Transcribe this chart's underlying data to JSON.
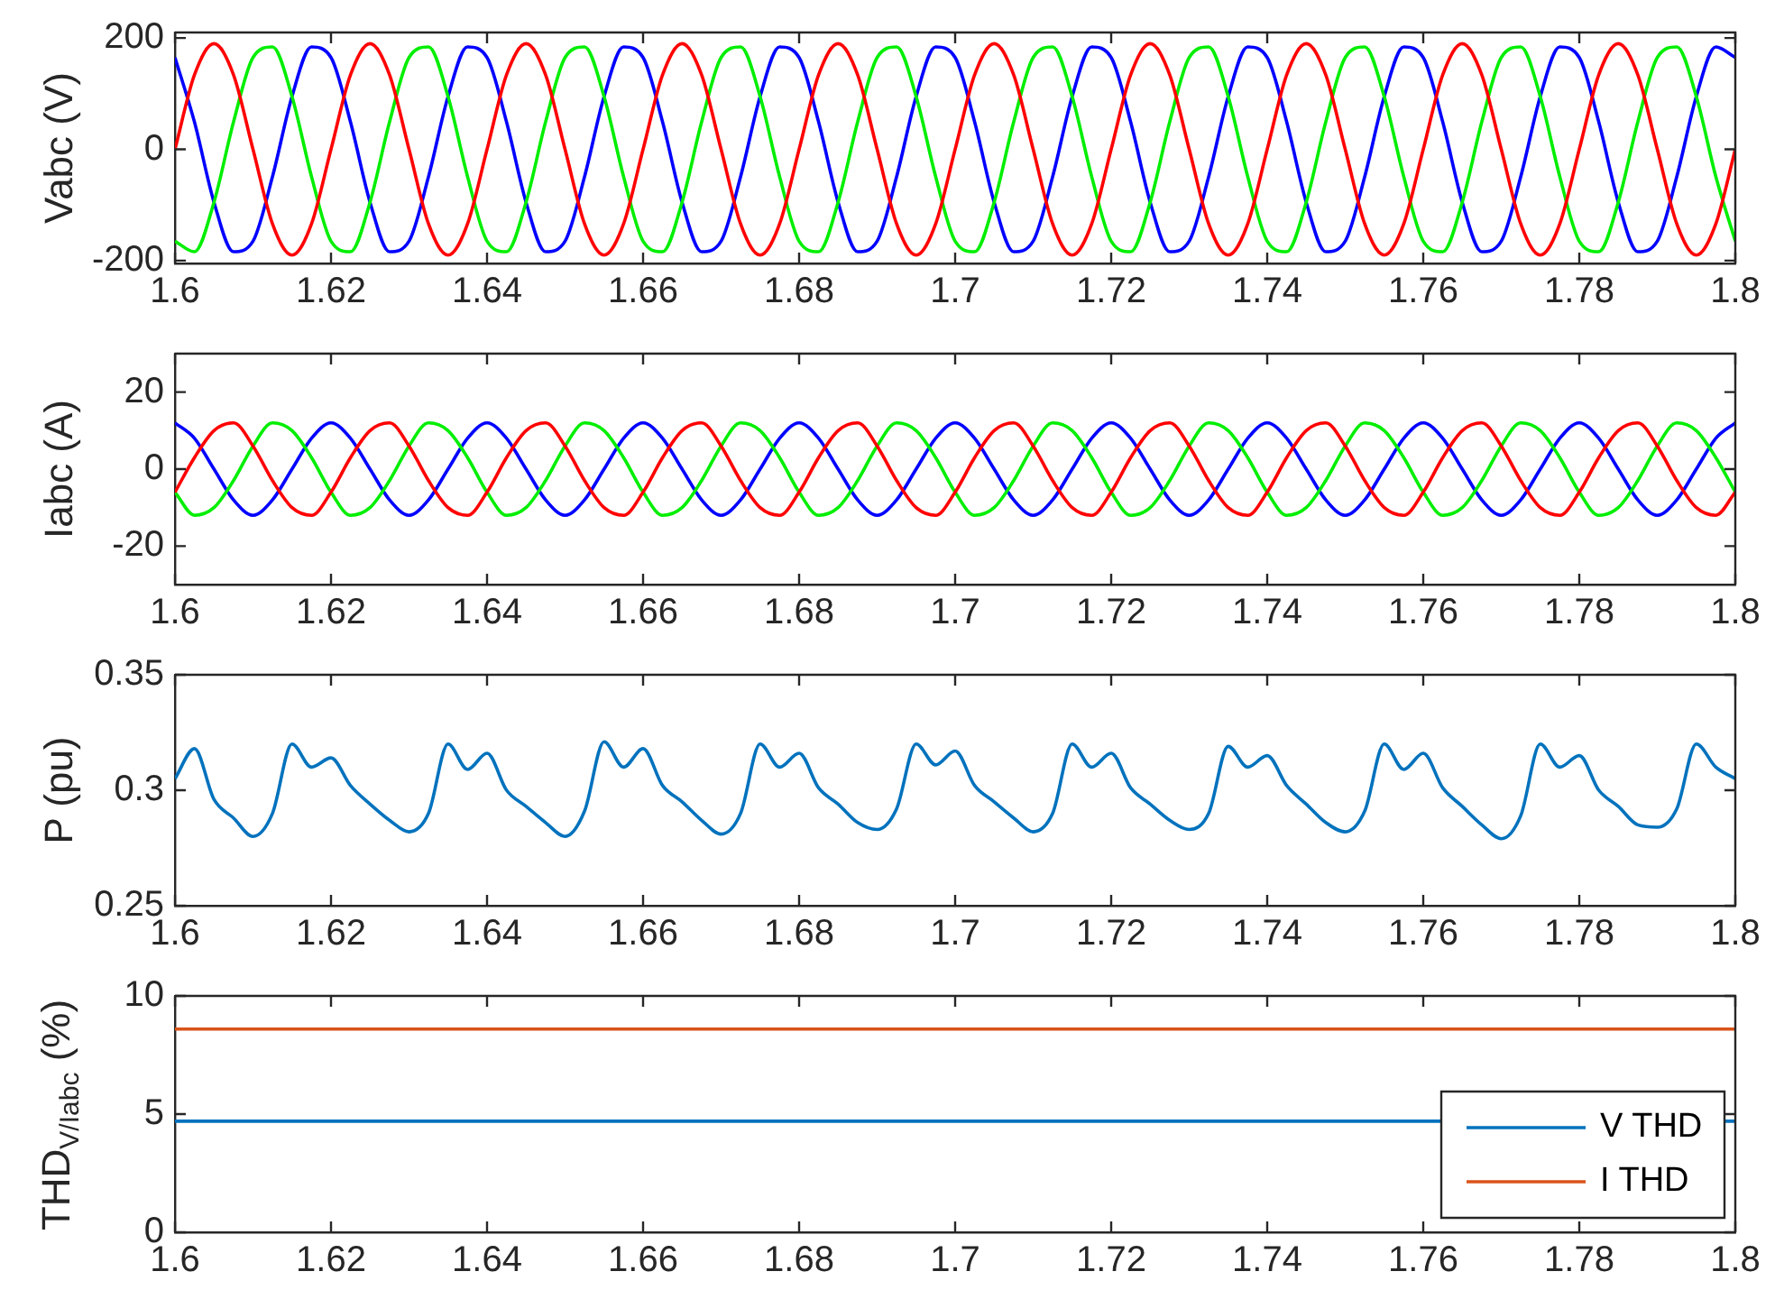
{
  "chart_data": [
    {
      "type": "line",
      "ylabel": "Vabc (V)",
      "xlim": [
        1.6,
        1.8
      ],
      "xticks": [
        1.6,
        1.62,
        1.64,
        1.66,
        1.68,
        1.7,
        1.72,
        1.74,
        1.76,
        1.78,
        1.8
      ],
      "ylim": [
        -205,
        210
      ],
      "yticks": [
        -200,
        0,
        200
      ],
      "x": [
        1.6,
        1.6025,
        1.605,
        1.6075,
        1.61,
        1.6125,
        1.615,
        1.6175,
        1.62,
        1.6225,
        1.625,
        1.6275,
        1.63,
        1.6325,
        1.635,
        1.6375,
        1.64,
        1.6425,
        1.645,
        1.6475,
        1.65,
        1.6525,
        1.655,
        1.6575,
        1.66,
        1.6625,
        1.665,
        1.6675,
        1.67,
        1.6725,
        1.675,
        1.6775,
        1.68,
        1.6825,
        1.685,
        1.6875,
        1.69,
        1.6925,
        1.695,
        1.6975,
        1.7,
        1.7025,
        1.705,
        1.7075,
        1.71,
        1.7125,
        1.715,
        1.7175,
        1.72,
        1.7225,
        1.725,
        1.7275,
        1.73,
        1.7325,
        1.735,
        1.7375,
        1.74,
        1.7425,
        1.745,
        1.7475,
        1.75,
        1.7525,
        1.755,
        1.7575,
        1.76,
        1.7625,
        1.765,
        1.7675,
        1.77,
        1.7725,
        1.775,
        1.7775,
        1.78,
        1.7825,
        1.785,
        1.7875,
        1.79,
        1.7925,
        1.795,
        1.7975,
        1.8
      ],
      "series": [
        {
          "color": "#ff0000",
          "values": [
            0,
            134,
            190,
            134,
            0,
            -134,
            -190,
            -134,
            0,
            134,
            190,
            134,
            0,
            -134,
            -190,
            -134,
            0,
            134,
            190,
            134,
            0,
            -134,
            -190,
            -134,
            0,
            134,
            190,
            134,
            0,
            -134,
            -190,
            -134,
            0,
            134,
            190,
            134,
            0,
            -134,
            -190,
            -134,
            0,
            134,
            190,
            134,
            0,
            -134,
            -190,
            -134,
            0,
            134,
            190,
            134,
            0,
            -134,
            -190,
            -134,
            0,
            134,
            190,
            134,
            0,
            -134,
            -190,
            -134,
            0,
            134,
            190,
            134,
            0,
            -134,
            -190,
            -134,
            0,
            134,
            190,
            134,
            0,
            -134,
            -190,
            -134,
            0
          ]
        },
        {
          "color": "#00ee00",
          "values": [
            -165,
            -184,
            -95,
            49,
            165,
            184,
            95,
            -49,
            -165,
            -184,
            -95,
            49,
            165,
            184,
            95,
            -49,
            -165,
            -184,
            -95,
            49,
            165,
            184,
            95,
            -49,
            -165,
            -184,
            -95,
            49,
            165,
            184,
            95,
            -49,
            -165,
            -184,
            -95,
            49,
            165,
            184,
            95,
            -49,
            -165,
            -184,
            -95,
            49,
            165,
            184,
            95,
            -49,
            -165,
            -184,
            -95,
            49,
            165,
            184,
            95,
            -49,
            -165,
            -184,
            -95,
            49,
            165,
            184,
            95,
            -49,
            -165,
            -184,
            -95,
            49,
            165,
            184,
            95,
            -49,
            -165,
            -184,
            -95,
            49,
            165,
            184,
            95,
            -49,
            -165
          ]
        },
        {
          "color": "#0000ff",
          "values": [
            165,
            49,
            -95,
            -184,
            -165,
            -49,
            95,
            184,
            165,
            49,
            -95,
            -184,
            -165,
            -49,
            95,
            184,
            165,
            49,
            -95,
            -184,
            -165,
            -49,
            95,
            184,
            165,
            49,
            -95,
            -184,
            -165,
            -49,
            95,
            184,
            165,
            49,
            -95,
            -184,
            -165,
            -49,
            95,
            184,
            165,
            49,
            -95,
            -184,
            -165,
            -49,
            95,
            184,
            165,
            49,
            -95,
            -184,
            -165,
            -49,
            95,
            184,
            165,
            49,
            -95,
            -184,
            -165,
            -49,
            95,
            184,
            165,
            49,
            -95,
            -184,
            -165,
            -49,
            95,
            184,
            165,
            49,
            -95,
            -184,
            -165,
            -49,
            95,
            184,
            165
          ]
        }
      ]
    },
    {
      "type": "line",
      "ylabel": "Iabc (A)",
      "xlim": [
        1.6,
        1.8
      ],
      "xticks": [
        1.6,
        1.62,
        1.64,
        1.66,
        1.68,
        1.7,
        1.72,
        1.74,
        1.76,
        1.78,
        1.8
      ],
      "ylim": [
        -30,
        30
      ],
      "yticks": [
        -20,
        0,
        20
      ],
      "x": [
        1.6,
        1.6025,
        1.605,
        1.6075,
        1.61,
        1.6125,
        1.615,
        1.6175,
        1.62,
        1.6225,
        1.625,
        1.6275,
        1.63,
        1.6325,
        1.635,
        1.6375,
        1.64,
        1.6425,
        1.645,
        1.6475,
        1.65,
        1.6525,
        1.655,
        1.6575,
        1.66,
        1.6625,
        1.665,
        1.6675,
        1.67,
        1.6725,
        1.675,
        1.6775,
        1.68,
        1.6825,
        1.685,
        1.6875,
        1.69,
        1.6925,
        1.695,
        1.6975,
        1.7,
        1.7025,
        1.705,
        1.7075,
        1.71,
        1.7125,
        1.715,
        1.7175,
        1.72,
        1.7225,
        1.725,
        1.7275,
        1.73,
        1.7325,
        1.735,
        1.7375,
        1.74,
        1.7425,
        1.745,
        1.7475,
        1.75,
        1.7525,
        1.755,
        1.7575,
        1.76,
        1.7625,
        1.765,
        1.7675,
        1.77,
        1.7725,
        1.775,
        1.7775,
        1.78,
        1.7825,
        1.785,
        1.7875,
        1.79,
        1.7925,
        1.795,
        1.7975,
        1.8
      ],
      "series": [
        {
          "color": "#ff0000",
          "values": [
            -6,
            3,
            10,
            12,
            6,
            -3,
            -10,
            -12,
            -6,
            3,
            10,
            12,
            6,
            -3,
            -10,
            -12,
            -6,
            3,
            10,
            12,
            6,
            -3,
            -10,
            -12,
            -6,
            3,
            10,
            12,
            6,
            -3,
            -10,
            -12,
            -6,
            3,
            10,
            12,
            6,
            -3,
            -10,
            -12,
            -6,
            3,
            10,
            12,
            6,
            -3,
            -10,
            -12,
            -6,
            3,
            10,
            12,
            6,
            -3,
            -10,
            -12,
            -6,
            3,
            10,
            12,
            6,
            -3,
            -10,
            -12,
            -6,
            3,
            10,
            12,
            6,
            -3,
            -10,
            -12,
            -6,
            3,
            10,
            12,
            6,
            -3,
            -10,
            -12,
            -6
          ]
        },
        {
          "color": "#00ee00",
          "values": [
            -6,
            -12,
            -10,
            -3,
            6,
            12,
            10,
            3,
            -6,
            -12,
            -10,
            -3,
            6,
            12,
            10,
            3,
            -6,
            -12,
            -10,
            -3,
            6,
            12,
            10,
            3,
            -6,
            -12,
            -10,
            -3,
            6,
            12,
            10,
            3,
            -6,
            -12,
            -10,
            -3,
            6,
            12,
            10,
            3,
            -6,
            -12,
            -10,
            -3,
            6,
            12,
            10,
            3,
            -6,
            -12,
            -10,
            -3,
            6,
            12,
            10,
            3,
            -6,
            -12,
            -10,
            -3,
            6,
            12,
            10,
            3,
            -6,
            -12,
            -10,
            -3,
            6,
            12,
            10,
            3,
            -6,
            -12,
            -10,
            -3,
            6,
            12,
            10,
            3,
            -6
          ]
        },
        {
          "color": "#0000ff",
          "values": [
            12,
            8,
            0,
            -8,
            -12,
            -8,
            0,
            8,
            12,
            8,
            0,
            -8,
            -12,
            -8,
            0,
            8,
            12,
            8,
            0,
            -8,
            -12,
            -8,
            0,
            8,
            12,
            8,
            0,
            -8,
            -12,
            -8,
            0,
            8,
            12,
            8,
            0,
            -8,
            -12,
            -8,
            0,
            8,
            12,
            8,
            0,
            -8,
            -12,
            -8,
            0,
            8,
            12,
            8,
            0,
            -8,
            -12,
            -8,
            0,
            8,
            12,
            8,
            0,
            -8,
            -12,
            -8,
            0,
            8,
            12,
            8,
            0,
            -8,
            -12,
            -8,
            0,
            8,
            12,
            8,
            0,
            -8,
            -12,
            -8,
            0,
            8,
            12
          ]
        }
      ]
    },
    {
      "type": "line",
      "ylabel": "P (pu)",
      "xlim": [
        1.6,
        1.8
      ],
      "xticks": [
        1.6,
        1.62,
        1.64,
        1.66,
        1.68,
        1.7,
        1.72,
        1.74,
        1.76,
        1.78,
        1.8
      ],
      "ylim": [
        0.25,
        0.35
      ],
      "yticks": [
        0.25,
        0.3,
        0.35
      ],
      "x": [
        1.6,
        1.6025,
        1.605,
        1.6075,
        1.61,
        1.6125,
        1.615,
        1.6175,
        1.62,
        1.6225,
        1.625,
        1.6275,
        1.63,
        1.6325,
        1.635,
        1.6375,
        1.64,
        1.6425,
        1.645,
        1.6475,
        1.65,
        1.6525,
        1.655,
        1.6575,
        1.66,
        1.6625,
        1.665,
        1.6675,
        1.67,
        1.6725,
        1.675,
        1.6775,
        1.68,
        1.6825,
        1.685,
        1.6875,
        1.69,
        1.6925,
        1.695,
        1.6975,
        1.7,
        1.7025,
        1.705,
        1.7075,
        1.71,
        1.7125,
        1.715,
        1.7175,
        1.72,
        1.7225,
        1.725,
        1.7275,
        1.73,
        1.7325,
        1.735,
        1.7375,
        1.74,
        1.7425,
        1.745,
        1.7475,
        1.75,
        1.7525,
        1.755,
        1.7575,
        1.76,
        1.7625,
        1.765,
        1.7675,
        1.77,
        1.7725,
        1.775,
        1.7775,
        1.78,
        1.7825,
        1.785,
        1.7875,
        1.79,
        1.7925,
        1.795,
        1.7975,
        1.8
      ],
      "series": [
        {
          "color": "#0072bd",
          "values": [
            0.305,
            0.318,
            0.296,
            0.288,
            0.28,
            0.29,
            0.32,
            0.31,
            0.314,
            0.302,
            0.294,
            0.287,
            0.282,
            0.29,
            0.32,
            0.309,
            0.316,
            0.3,
            0.293,
            0.286,
            0.28,
            0.291,
            0.321,
            0.31,
            0.318,
            0.302,
            0.295,
            0.287,
            0.281,
            0.29,
            0.32,
            0.31,
            0.316,
            0.301,
            0.294,
            0.286,
            0.283,
            0.292,
            0.32,
            0.311,
            0.317,
            0.302,
            0.295,
            0.288,
            0.282,
            0.29,
            0.32,
            0.31,
            0.316,
            0.301,
            0.294,
            0.287,
            0.283,
            0.29,
            0.319,
            0.31,
            0.315,
            0.302,
            0.294,
            0.286,
            0.282,
            0.291,
            0.32,
            0.309,
            0.316,
            0.301,
            0.293,
            0.285,
            0.279,
            0.289,
            0.32,
            0.31,
            0.315,
            0.3,
            0.293,
            0.285,
            0.284,
            0.292,
            0.32,
            0.31,
            0.305
          ]
        }
      ]
    },
    {
      "type": "line",
      "ylabel": "THD$_{V/Iabc}$ (%)",
      "xlim": [
        1.6,
        1.8
      ],
      "xticks": [
        1.6,
        1.62,
        1.64,
        1.66,
        1.68,
        1.7,
        1.72,
        1.74,
        1.76,
        1.78,
        1.8
      ],
      "ylim": [
        0,
        10
      ],
      "yticks": [
        0,
        5,
        10
      ],
      "legend": "bottom right",
      "x": [
        1.6,
        1.8
      ],
      "series": [
        {
          "name": "V THD",
          "color": "#0072bd",
          "values": [
            4.7,
            4.7
          ]
        },
        {
          "name": "I THD",
          "color": "#d95319",
          "values": [
            8.6,
            8.6
          ]
        }
      ]
    }
  ]
}
